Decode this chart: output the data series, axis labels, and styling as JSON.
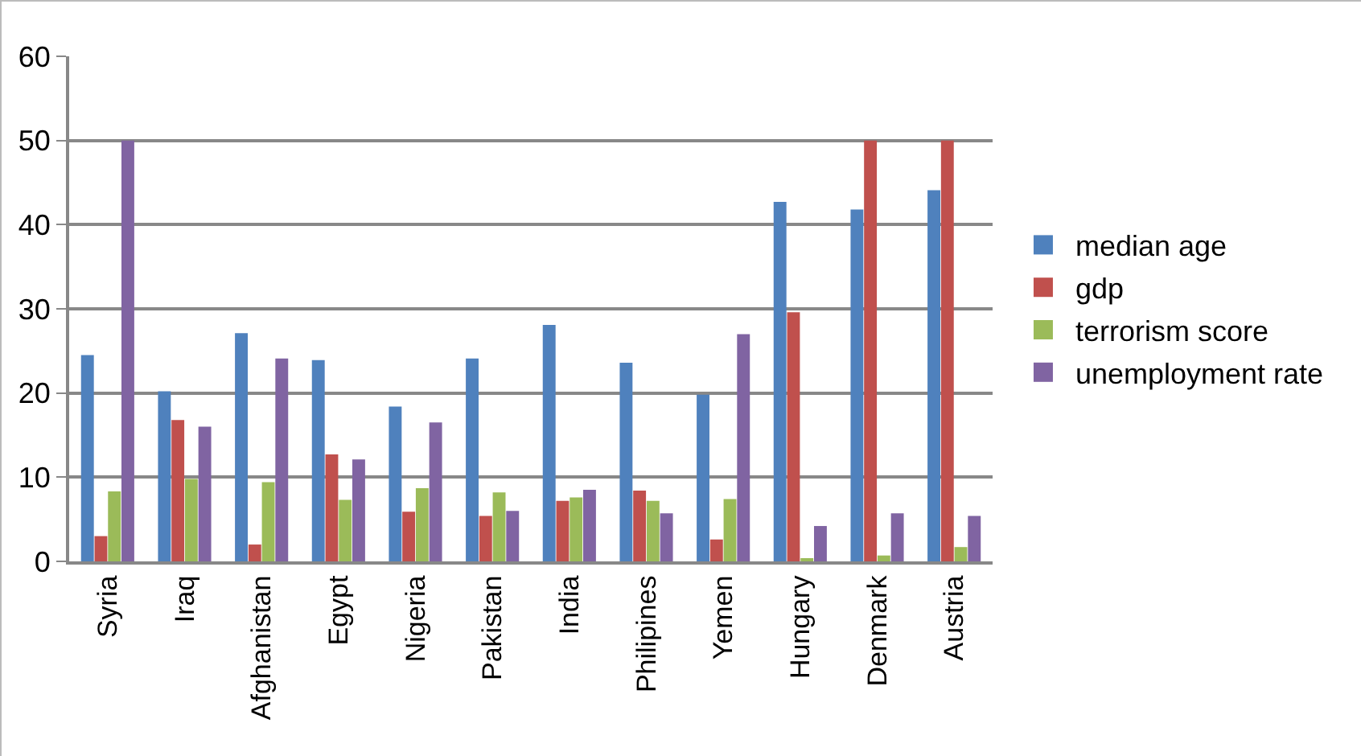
{
  "chart_data": {
    "type": "bar",
    "categories": [
      "Syria",
      "Iraq",
      "Afghanistan",
      "Egypt",
      "Nigeria",
      "Pakistan",
      "India",
      "Philipines",
      "Yemen",
      "Hungary",
      "Denmark",
      "Austria"
    ],
    "series": [
      {
        "name": "median age",
        "color": "#4f81bd",
        "values": [
          24.5,
          20.2,
          27.1,
          23.9,
          18.4,
          24.1,
          28.1,
          23.6,
          19.8,
          42.7,
          41.8,
          44.1
        ]
      },
      {
        "name": "gdp",
        "color": "#c0504d",
        "values": [
          3,
          16.8,
          2,
          12.7,
          5.9,
          5.4,
          7.2,
          8.4,
          2.6,
          29.6,
          50,
          50
        ]
      },
      {
        "name": "terrorism score",
        "color": "#9bbb59",
        "values": [
          8.3,
          9.8,
          9.4,
          7.3,
          8.7,
          8.2,
          7.6,
          7.2,
          7.4,
          0.3,
          0.7,
          1.7
        ]
      },
      {
        "name": "unemployment rate",
        "color": "#8064a2",
        "values": [
          50,
          16,
          24.1,
          12.1,
          16.5,
          6,
          8.5,
          5.7,
          27,
          4.2,
          5.7,
          5.4
        ]
      }
    ],
    "ylim": [
      0,
      60
    ],
    "yticks": [
      0,
      10,
      20,
      30,
      40,
      50,
      60
    ],
    "grid": "y",
    "legend": "right"
  }
}
